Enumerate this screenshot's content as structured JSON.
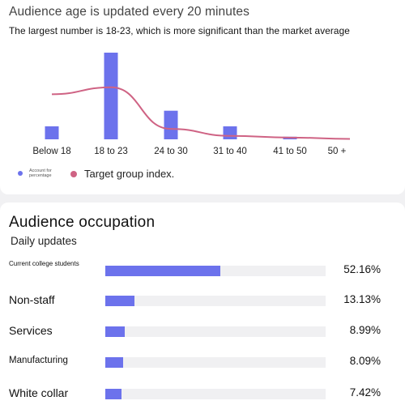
{
  "age": {
    "title": "Audience age is updated every 20 minutes",
    "subtitle": "The largest number is 18-23, which is more significant than the market average",
    "legend": {
      "bar_label": "Account for percentage",
      "line_label": "Target group index."
    }
  },
  "chart_data": {
    "type": "bar",
    "categories": [
      "Below 18",
      "18 to 23",
      "24 to 30",
      "31 to 40",
      "41 to 50",
      "50 +"
    ],
    "series": [
      {
        "name": "Account for percentage",
        "type": "bar",
        "values": [
          15,
          100,
          33,
          15,
          3,
          0
        ],
        "color": "#6c72ec"
      },
      {
        "name": "Target group index.",
        "type": "line",
        "values": [
          52,
          60,
          12,
          4,
          2,
          0.5
        ],
        "color": "#cf6384"
      }
    ],
    "ylim": [
      0,
      100
    ],
    "grid": false,
    "legend_position": "bottom-left"
  },
  "occupation": {
    "title": "Audience occupation",
    "subtitle": "Daily updates",
    "rows": [
      {
        "label": "Current college students",
        "value": "52.16%",
        "percent": 52.16
      },
      {
        "label": "Non-staff",
        "value": "13.13%",
        "percent": 13.13
      },
      {
        "label": "Services",
        "value": "8.99%",
        "percent": 8.99
      },
      {
        "label": "Manufacturing",
        "value": "8.09%",
        "percent": 8.09
      },
      {
        "label": "White collar",
        "value": "7.42%",
        "percent": 7.42
      }
    ]
  }
}
